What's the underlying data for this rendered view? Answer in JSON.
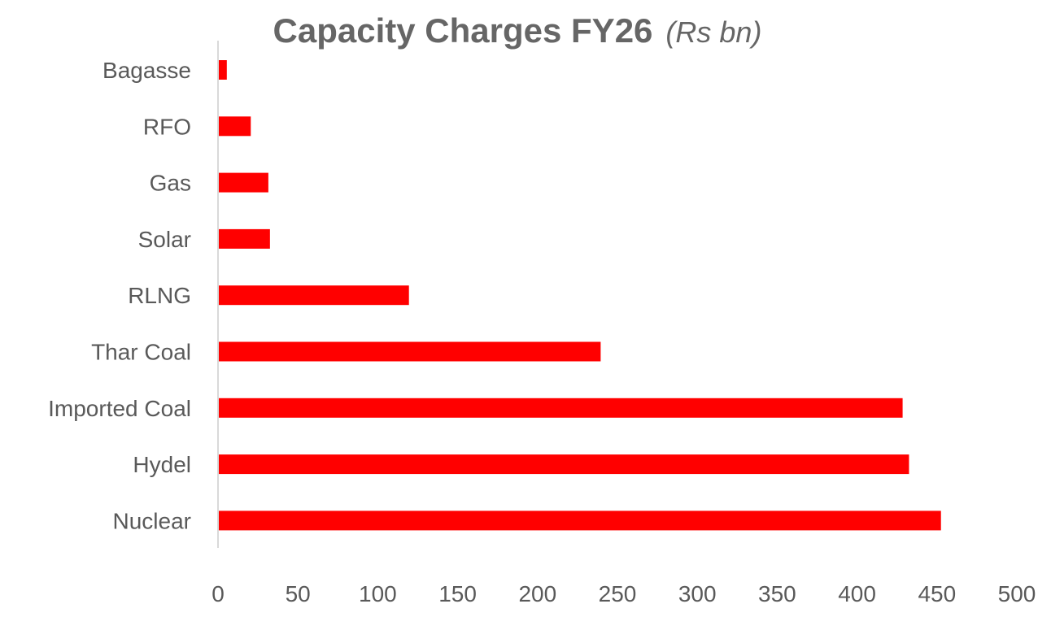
{
  "chart_data": {
    "type": "bar",
    "orientation": "horizontal",
    "title": "Capacity Charges FY26",
    "title_unit": "(Rs bn)",
    "categories": [
      "Bagasse",
      "RFO",
      "Gas",
      "Solar",
      "RLNG",
      "Thar Coal",
      "Imported Coal",
      "Hydel",
      "Nuclear"
    ],
    "values": [
      5,
      20,
      31,
      32,
      119,
      239,
      428,
      432,
      452
    ],
    "xlim": [
      0,
      500
    ],
    "xticks": [
      0,
      50,
      100,
      150,
      200,
      250,
      300,
      350,
      400,
      450,
      500
    ],
    "grid": false,
    "legend": "none",
    "bar_color": "#ff0000",
    "axis_color": "#d9d9d9"
  }
}
